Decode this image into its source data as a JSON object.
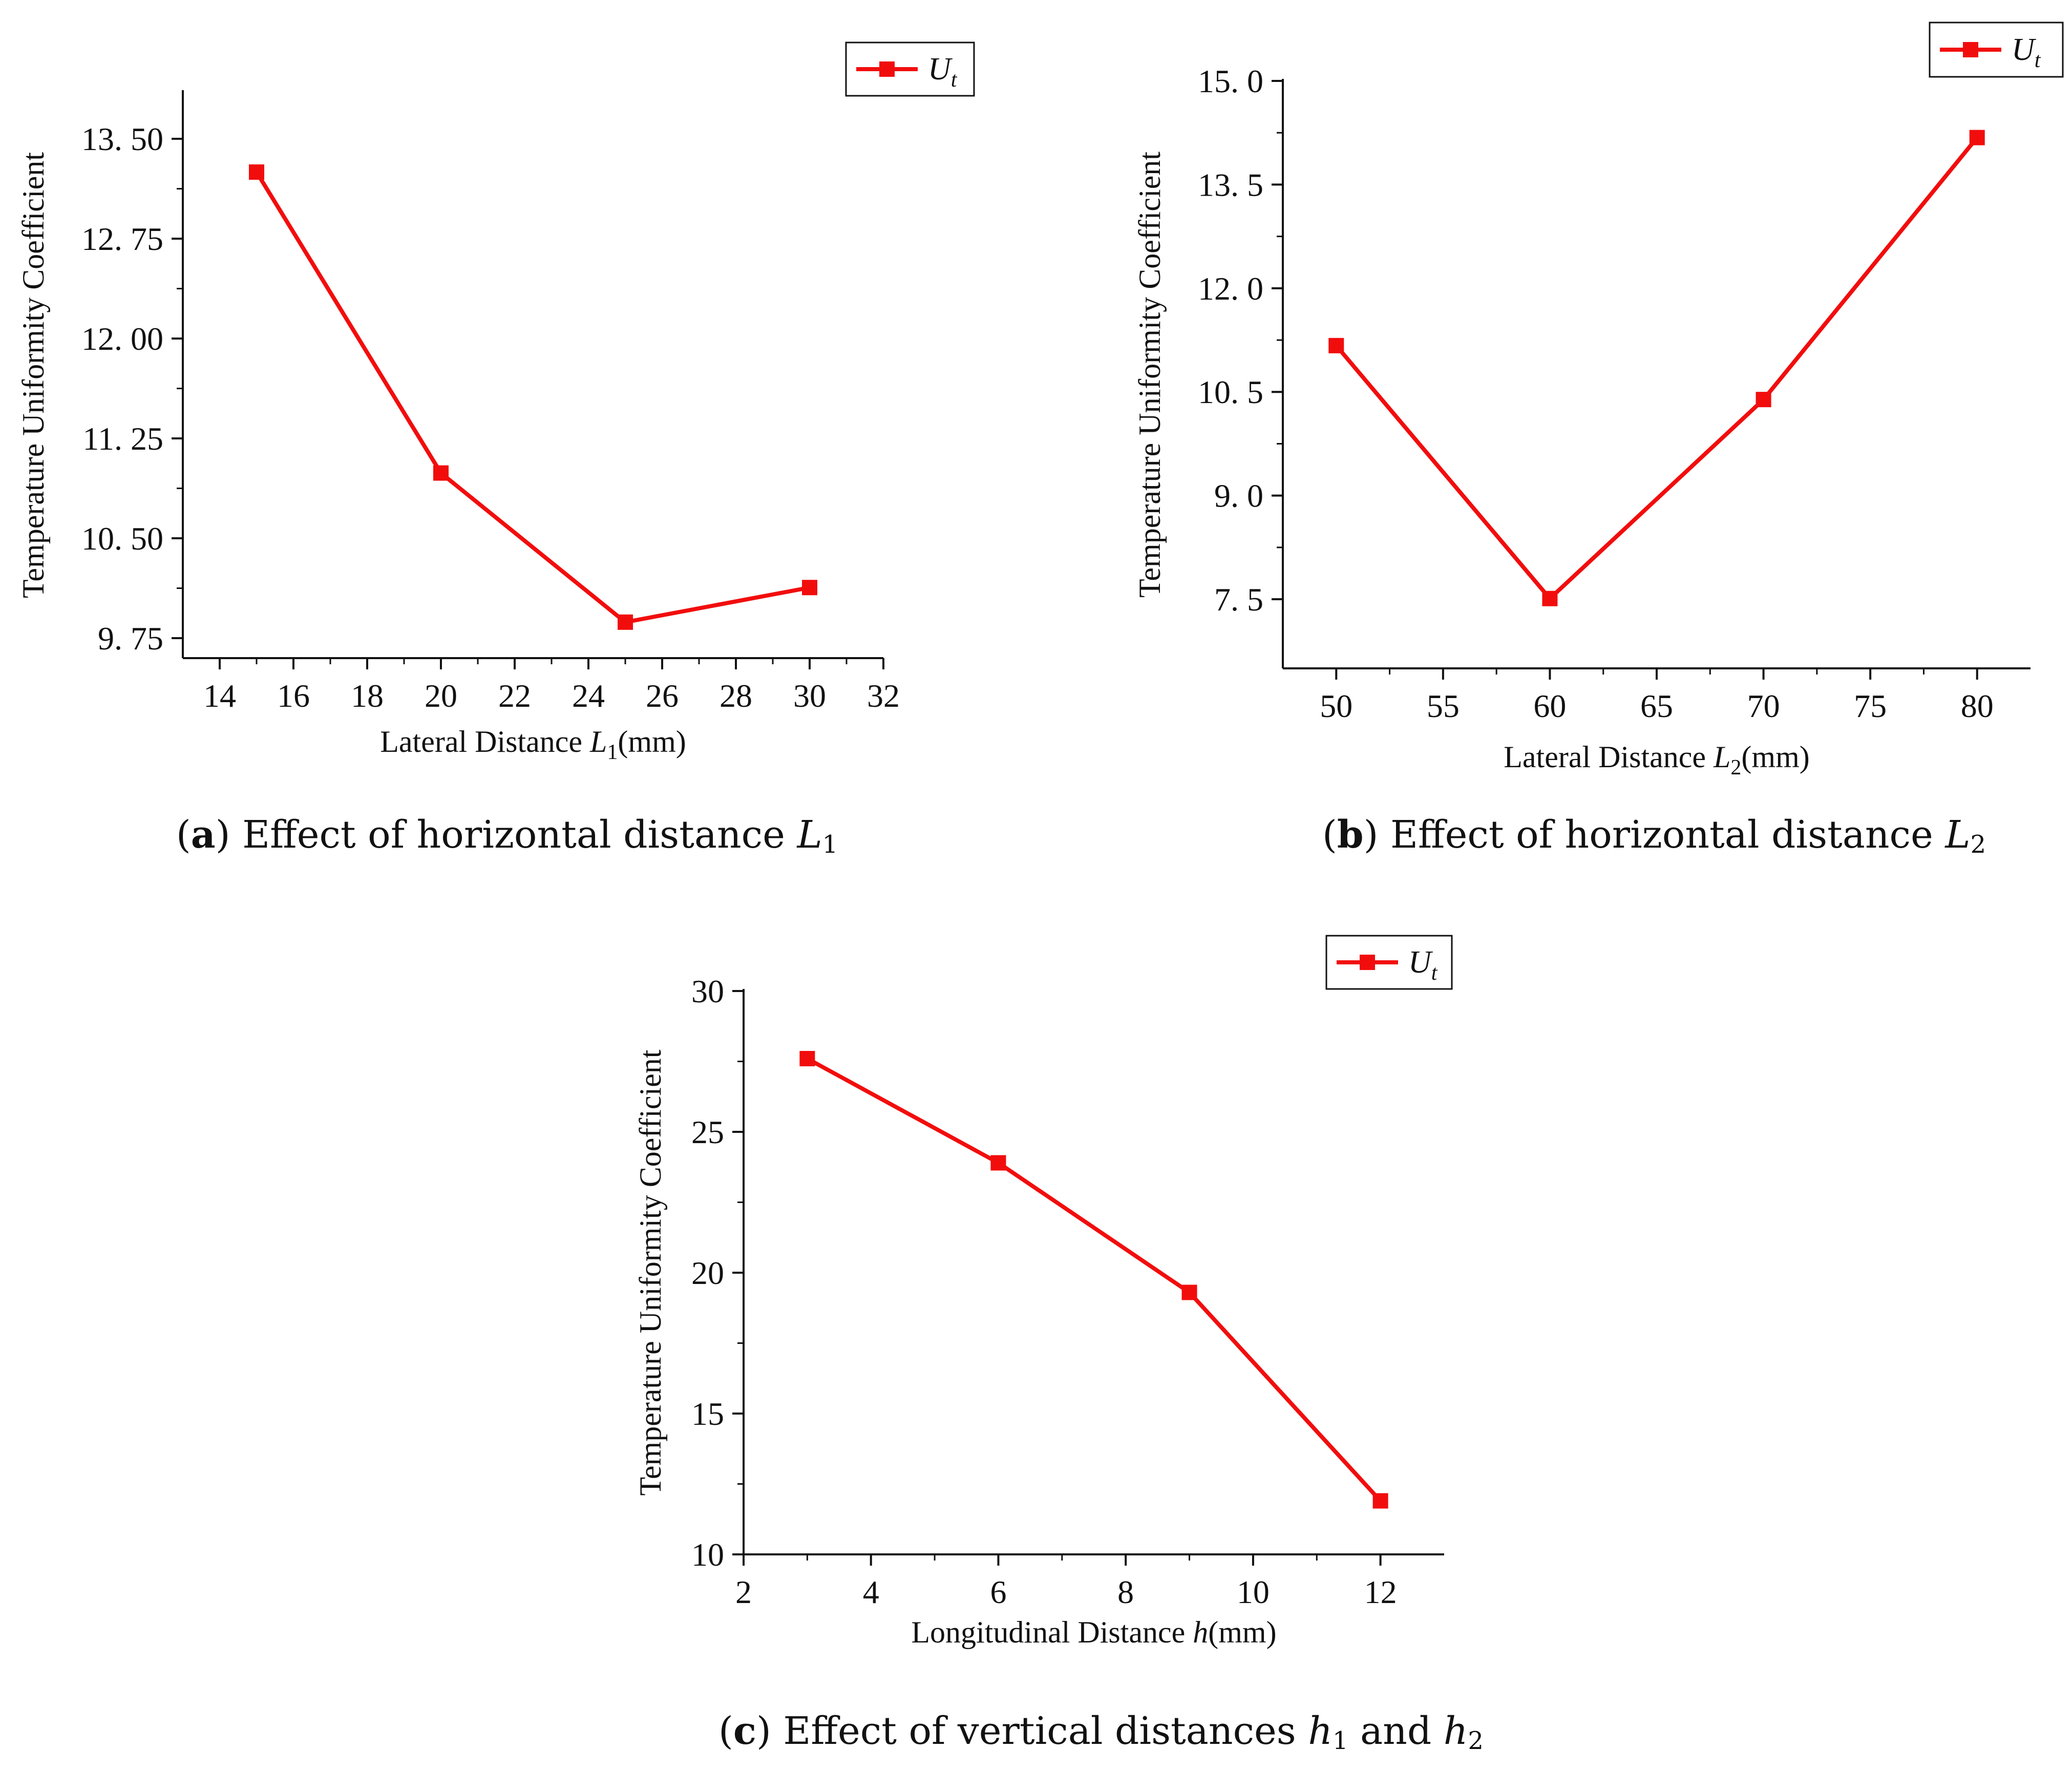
{
  "colors": {
    "series": "#f20d0d",
    "axis": "#111111"
  },
  "chart_data": [
    {
      "id": "a",
      "type": "line",
      "x": [
        15,
        20,
        25,
        30
      ],
      "values": [
        13.25,
        10.99,
        9.87,
        10.13
      ],
      "xlim": [
        13,
        32
      ],
      "ylim": [
        9.6,
        13.85
      ],
      "xticks": [
        14,
        16,
        18,
        20,
        22,
        24,
        26,
        28,
        30,
        32
      ],
      "yticks": [
        9.75,
        10.5,
        11.25,
        12.0,
        12.75,
        13.5
      ],
      "xtick_labels": [
        "14",
        "16",
        "18",
        "20",
        "22",
        "24",
        "26",
        "28",
        "30",
        "32"
      ],
      "ytick_labels": [
        "9. 75",
        "10. 50",
        "11. 25",
        "12. 00",
        "12. 75",
        "13. 50"
      ],
      "ylabel": "Temperature Uniformity Coefficient",
      "xlabel_main": "Lateral Distance ",
      "xlabel_var": "L",
      "xlabel_sub": "1",
      "xlabel_unit": "(mm)",
      "legend": {
        "symbol": "U",
        "sub": "t"
      },
      "caption": {
        "letter": "a",
        "text": " Effect of horizontal distance ",
        "var": "L",
        "sub": "1"
      }
    },
    {
      "id": "b",
      "type": "line",
      "x": [
        50,
        60,
        70,
        80
      ],
      "values": [
        11.17,
        7.51,
        10.39,
        14.18
      ],
      "xlim": [
        47.5,
        82.5
      ],
      "ylim": [
        6.5,
        15.0
      ],
      "xticks": [
        50,
        55,
        60,
        65,
        70,
        75,
        80
      ],
      "yticks": [
        7.5,
        9.0,
        10.5,
        12.0,
        13.5,
        15.0
      ],
      "xtick_labels": [
        "50",
        "55",
        "60",
        "65",
        "70",
        "75",
        "80"
      ],
      "ytick_labels": [
        "7. 5",
        "9. 0",
        "10. 5",
        "12. 0",
        "13. 5",
        "15. 0"
      ],
      "ylabel": "Temperature Uniformity Coefficient",
      "xlabel_main": "Lateral Distance ",
      "xlabel_var": "L",
      "xlabel_sub": "2",
      "xlabel_unit": "(mm)",
      "legend": {
        "symbol": "U",
        "sub": "t"
      },
      "caption": {
        "letter": "b",
        "text": " Effect of horizontal distance ",
        "var": "L",
        "sub": "2"
      }
    },
    {
      "id": "c",
      "type": "line",
      "x": [
        3,
        6,
        9,
        12
      ],
      "values": [
        27.6,
        23.9,
        19.3,
        11.9
      ],
      "xlim": [
        2,
        13
      ],
      "ylim": [
        10,
        30
      ],
      "xticks": [
        2,
        4,
        6,
        8,
        10,
        12
      ],
      "yticks": [
        10,
        15,
        20,
        25,
        30
      ],
      "xtick_labels": [
        "2",
        "4",
        "6",
        "8",
        "10",
        "12"
      ],
      "ytick_labels": [
        "10",
        "15",
        "20",
        "25",
        "30"
      ],
      "ylabel": "Temperature Uniformity Coefficient",
      "xlabel_main": "Longitudinal Distance ",
      "xlabel_var": "h",
      "xlabel_sub": "",
      "xlabel_unit": "(mm)",
      "legend": {
        "symbol": "U",
        "sub": "t"
      },
      "caption": {
        "letter": "c",
        "text": " Effect of vertical distances ",
        "var": "h",
        "sub": "1",
        "and": " and ",
        "var2": "h",
        "sub2": "2"
      }
    }
  ]
}
